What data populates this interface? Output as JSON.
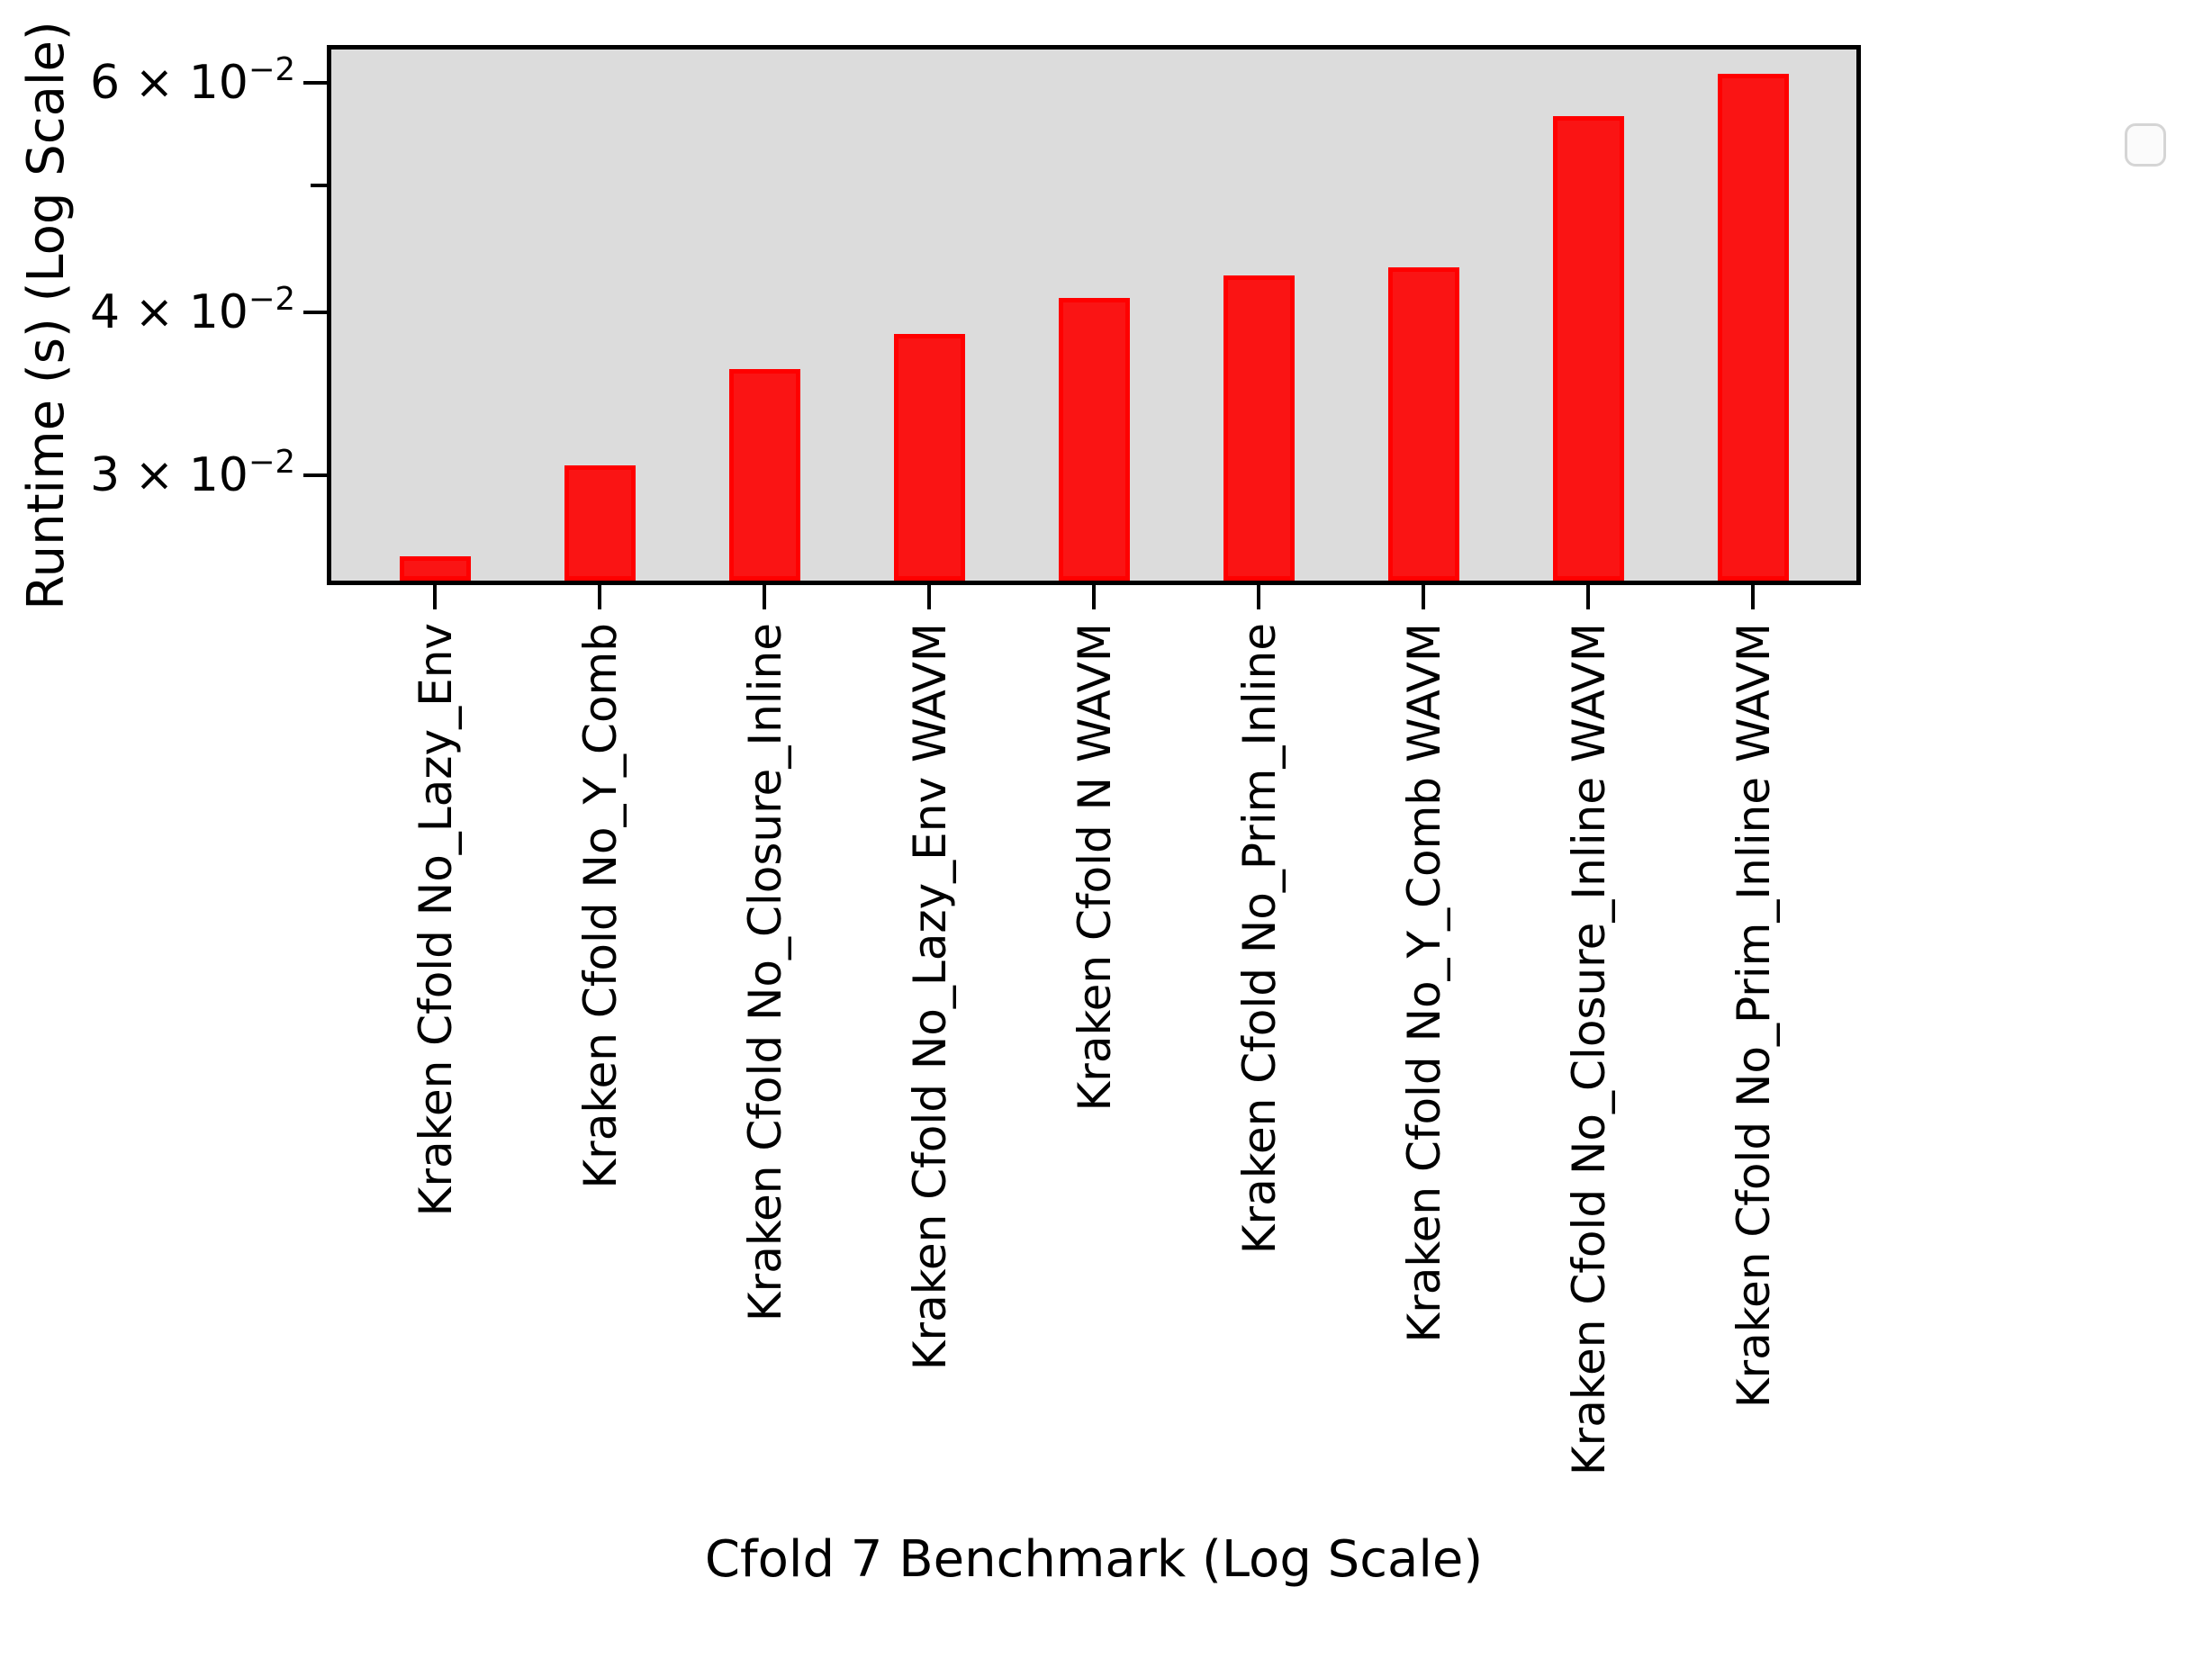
{
  "chart_data": {
    "type": "bar",
    "title": "",
    "xlabel": "Cfold 7 Benchmark (Log Scale)",
    "ylabel": "Runtime (s) (Log Scale)",
    "categories": [
      "Kraken Cfold No_Lazy_Env",
      "Kraken Cfold No_Y_Comb",
      "Kraken Cfold No_Closure_Inline",
      "Kraken Cfold No_Lazy_Env WAVM",
      "Kraken Cfold N WAVM",
      "Kraken Cfold No_Prim_Inline",
      "Kraken Cfold No_Y_Comb WAVM",
      "Kraken Cfold No_Closure_Inline WAVM",
      "Kraken Cfold No_Prim_Inline WAVM"
    ],
    "values": [
      0.026,
      0.0305,
      0.0362,
      0.0385,
      0.041,
      0.0427,
      0.0433,
      0.0565,
      0.0609
    ],
    "yscale": "log",
    "ylim": [
      0.0249,
      0.0636
    ],
    "yticks": [
      {
        "value": 0.06,
        "text": "6 × 10",
        "sup": "−2"
      },
      {
        "value": 0.05
      },
      {
        "value": 0.04,
        "text": "4 × 10",
        "sup": "−2"
      },
      {
        "value": 0.03,
        "text": "3 × 10",
        "sup": "−2"
      }
    ],
    "legend_entries": [],
    "colors": {
      "bar_fill": "#fa1414",
      "bar_edge": "#ff0000",
      "plot_background": "#dcdcdc",
      "spine": "#000000",
      "figure_background": "#ffffff"
    },
    "grid": false,
    "legend_position": "upper right"
  }
}
